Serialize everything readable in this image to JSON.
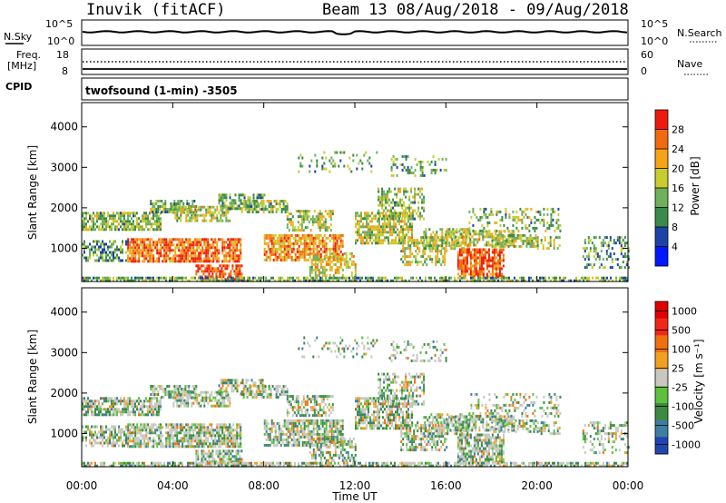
{
  "header": {
    "station": "Inuvik (fitACF)",
    "beam_date": "Beam 13 08/Aug/2018 - 09/Aug/2018"
  },
  "aux_panels": {
    "nsky_label": "N.Sky",
    "nsky_ticks": [
      "10^5",
      "10^0"
    ],
    "nsearch_label": "N.Search",
    "nsearch_ticks": [
      "10^5",
      "10^0"
    ],
    "freq_label_1": "Freq.",
    "freq_label_2": "[MHz]",
    "freq_ticks": [
      "18",
      "8"
    ],
    "nave_label": "Nave",
    "nave_ticks": [
      "60",
      "0"
    ],
    "cpid_label": "CPID",
    "cpid_text": "twofsound (1-min) -3505"
  },
  "chart_data": [
    {
      "type": "heatmap",
      "name": "power",
      "ylabel": "Slant Range [km]",
      "yticks": [
        "1000",
        "2000",
        "3000",
        "4000"
      ],
      "ylim": [
        180,
        4600
      ],
      "xlabel": "Time UT",
      "xticks": [
        "00:00",
        "04:00",
        "08:00",
        "12:00",
        "16:00",
        "20:00",
        "00:00"
      ],
      "colorbar_label": "Power [dB]",
      "colorbar_ticks": [
        "4",
        "8",
        "12",
        "16",
        "20",
        "24",
        "28"
      ],
      "colors": [
        "#0018ff",
        "#1c43a8",
        "#3b8a4a",
        "#6fb05a",
        "#c9cc30",
        "#f7a318",
        "#f26a10",
        "#ef1a0e"
      ]
    },
    {
      "type": "heatmap",
      "name": "velocity",
      "ylabel": "Slant Range [km]",
      "yticks": [
        "1000",
        "2000",
        "3000",
        "4000"
      ],
      "ylim": [
        180,
        4600
      ],
      "xlabel": "Time UT",
      "xticks": [
        "00:00",
        "04:00",
        "08:00",
        "12:00",
        "16:00",
        "20:00",
        "00:00"
      ],
      "colorbar_label": "Velocity [m s⁻¹]",
      "colorbar_ticks": [
        "1000",
        "500",
        "100",
        "25",
        "-25",
        "-100",
        "-500",
        "-1000"
      ],
      "colors": [
        "#2045b0",
        "#3d7fa0",
        "#3c8a40",
        "#5fc040",
        "#c8c8c0",
        "#f0a020",
        "#f07010",
        "#f02818",
        "#e00000"
      ]
    }
  ]
}
